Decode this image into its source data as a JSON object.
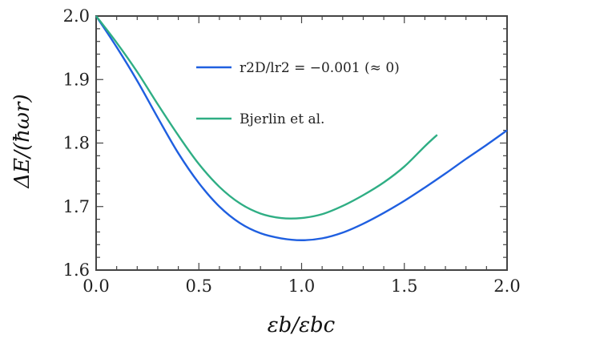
{
  "chart_data": {
    "type": "line",
    "title": "",
    "xlabel": "εb/εbc",
    "ylabel": "ΔE/(ħωr)",
    "xlim": [
      0.0,
      2.0
    ],
    "ylim": [
      1.6,
      2.0
    ],
    "xticks": [
      "0.0",
      "0.5",
      "1.0",
      "1.5",
      "2.0"
    ],
    "yticks": [
      "1.6",
      "1.7",
      "1.8",
      "1.9",
      "2.0"
    ],
    "grid": false,
    "legend_position": "top-right",
    "series": [
      {
        "name": "r2D/lr2 = −0.001 (≈ 0)",
        "color": "#1f5fe0",
        "x": [
          0.0,
          0.1,
          0.2,
          0.3,
          0.4,
          0.5,
          0.6,
          0.7,
          0.8,
          0.9,
          1.0,
          1.1,
          1.2,
          1.3,
          1.4,
          1.5,
          1.6,
          1.7,
          1.8,
          1.9,
          2.0
        ],
        "y": [
          2.0,
          1.951,
          1.898,
          1.84,
          1.784,
          1.737,
          1.7,
          1.674,
          1.658,
          1.65,
          1.647,
          1.65,
          1.659,
          1.673,
          1.69,
          1.709,
          1.73,
          1.752,
          1.775,
          1.797,
          1.82
        ]
      },
      {
        "name": "Bjerlin et al.",
        "color": "#2fae84",
        "x": [
          0.0,
          0.1,
          0.2,
          0.3,
          0.4,
          0.5,
          0.6,
          0.7,
          0.8,
          0.9,
          1.0,
          1.1,
          1.2,
          1.3,
          1.4,
          1.5,
          1.6,
          1.66
        ],
        "y": [
          2.0,
          1.958,
          1.912,
          1.861,
          1.812,
          1.767,
          1.731,
          1.705,
          1.689,
          1.682,
          1.682,
          1.688,
          1.701,
          1.718,
          1.738,
          1.763,
          1.795,
          1.813
        ]
      }
    ]
  }
}
